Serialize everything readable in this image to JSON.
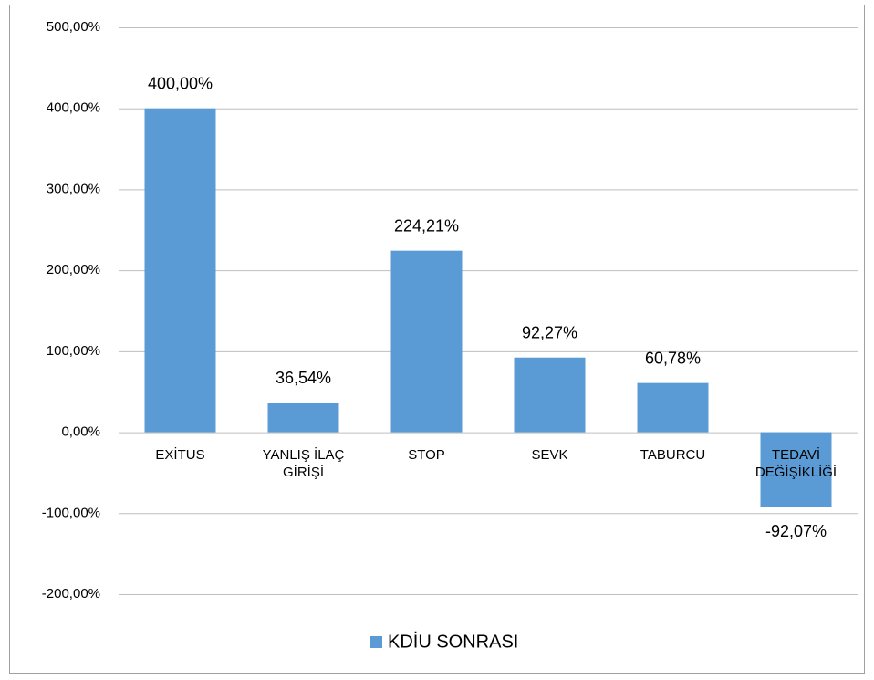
{
  "chart_data": {
    "type": "bar",
    "categories": [
      "EXİTUS",
      "YANLIŞ İLAÇ GİRİŞİ",
      "STOP",
      "SEVK",
      "TABURCU",
      "TEDAVİ DEĞİŞİKLİĞİ"
    ],
    "series": [
      {
        "name": "KDİU SONRASI",
        "color": "#5b9bd5",
        "values": [
          400,
          36.54,
          224.21,
          92.27,
          60.78,
          -92.07
        ],
        "value_labels": [
          "400,00%",
          "36,54%",
          "224,21%",
          "92,27%",
          "60,78%",
          "-92,07%"
        ]
      }
    ],
    "ylim": [
      -200,
      500
    ],
    "yticks": [
      {
        "value": -200,
        "label": "-200,00%"
      },
      {
        "value": -100,
        "label": "-100,00%"
      },
      {
        "value": 0,
        "label": "0,00%"
      },
      {
        "value": 100,
        "label": "100,00%"
      },
      {
        "value": 200,
        "label": "200,00%"
      },
      {
        "value": 300,
        "label": "300,00%"
      },
      {
        "value": 400,
        "label": "400,00%"
      },
      {
        "value": 500,
        "label": "500,00%"
      }
    ],
    "grid": true,
    "legend": "bottom"
  }
}
